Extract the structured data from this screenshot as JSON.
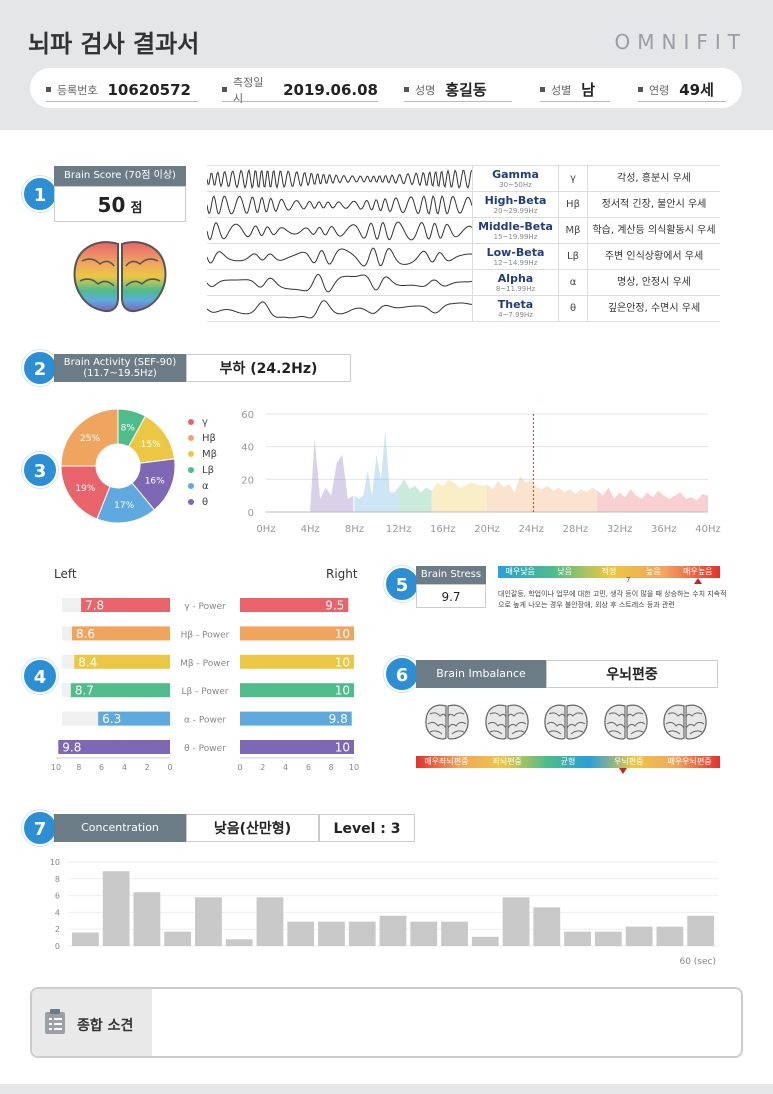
{
  "header": {
    "title": "뇌파 검사 결과서",
    "brand": "OMNIFIT",
    "fields": [
      {
        "label": "등록번호",
        "value": "10620572"
      },
      {
        "label": "측정일시",
        "value": "2019.06.08"
      },
      {
        "label": "성명",
        "value": "홍길동"
      },
      {
        "label": "성별",
        "value": "남"
      },
      {
        "label": "연령",
        "value": "49세"
      }
    ]
  },
  "section_numbers": [
    "1",
    "2",
    "3",
    "4",
    "5",
    "6",
    "7"
  ],
  "brain_score": {
    "label": "Brain Score (70점 이상)",
    "value": "50",
    "unit": "점"
  },
  "waves": [
    {
      "name": "Gamma",
      "range": "30~50Hz",
      "symbol": "γ",
      "desc": "각성, 흥분시 우세"
    },
    {
      "name": "High-Beta",
      "range": "20~29.99Hz",
      "symbol": "Hβ",
      "desc": "정서적 긴장, 불안시 우세"
    },
    {
      "name": "Middle-Beta",
      "range": "15~19.99Hz",
      "symbol": "Mβ",
      "desc": "학습, 계산등 의식활동시 우세"
    },
    {
      "name": "Low-Beta",
      "range": "12~14.99Hz",
      "symbol": "Lβ",
      "desc": "주변 인식상황에서 우세"
    },
    {
      "name": "Alpha",
      "range": "8~11.99Hz",
      "symbol": "α",
      "desc": "명상, 안정시 우세"
    },
    {
      "name": "Theta",
      "range": "4~7.99Hz",
      "symbol": "θ",
      "desc": "깊은안정, 수면시 우세"
    }
  ],
  "brain_activity": {
    "label_line1": "Brain Activity (SEF-90)",
    "label_line2": "(11.7~19.5Hz)",
    "value": "부하 (24.2Hz)"
  },
  "colors": {
    "gamma": "#e9636b",
    "hbeta": "#f0a55f",
    "mbeta": "#ecc743",
    "lbeta": "#4ebd8a",
    "alpha": "#5ea9df",
    "theta": "#7e67b5",
    "accent": "#2c8fd6",
    "tag": "#6b7c87"
  },
  "chart_data": [
    {
      "type": "pie",
      "title": "",
      "categories": [
        "γ",
        "Hβ",
        "Mβ",
        "Lβ",
        "α",
        "θ"
      ],
      "values": [
        19,
        25,
        15,
        8,
        17,
        16
      ],
      "labels": [
        "19%",
        "25%",
        "15%",
        "8%",
        "17%",
        "16%"
      ]
    },
    {
      "type": "area",
      "title": "",
      "xlabel": "",
      "ylabel": "",
      "xlim": [
        0,
        40
      ],
      "ylim": [
        0,
        60
      ],
      "x_ticks": [
        "0Hz",
        "4Hz",
        "8Hz",
        "12Hz",
        "16Hz",
        "20Hz",
        "24Hz",
        "28Hz",
        "32Hz",
        "36Hz",
        "40Hz"
      ],
      "y_ticks": [
        "0",
        "20",
        "40",
        "60"
      ],
      "marker_x": 24.2,
      "bands": [
        {
          "name": "θ",
          "from": 4,
          "to": 8,
          "points": [
            [
              4,
              2
            ],
            [
              4.4,
              45
            ],
            [
              4.9,
              8
            ],
            [
              5.4,
              15
            ],
            [
              5.9,
              10
            ],
            [
              6.4,
              30
            ],
            [
              6.9,
              35
            ],
            [
              7.4,
              8
            ],
            [
              7.9,
              10
            ]
          ]
        },
        {
          "name": "α",
          "from": 8,
          "to": 12,
          "points": [
            [
              8,
              10
            ],
            [
              8.4,
              8
            ],
            [
              8.8,
              10
            ],
            [
              9.2,
              25
            ],
            [
              9.6,
              10
            ],
            [
              10,
              35
            ],
            [
              10.4,
              20
            ],
            [
              10.8,
              50
            ],
            [
              11.2,
              12
            ],
            [
              11.6,
              12
            ],
            [
              12,
              15
            ]
          ]
        },
        {
          "name": "Lβ",
          "from": 12,
          "to": 15,
          "points": [
            [
              12,
              15
            ],
            [
              12.5,
              20
            ],
            [
              13,
              14
            ],
            [
              13.5,
              16
            ],
            [
              14,
              12
            ],
            [
              14.5,
              15
            ],
            [
              15,
              13
            ]
          ]
        },
        {
          "name": "Mβ",
          "from": 15,
          "to": 20,
          "points": [
            [
              15,
              13
            ],
            [
              15.5,
              18
            ],
            [
              16,
              16
            ],
            [
              16.5,
              20
            ],
            [
              17,
              18
            ],
            [
              17.5,
              15
            ],
            [
              18,
              16
            ],
            [
              18.5,
              18
            ],
            [
              19,
              17
            ],
            [
              19.5,
              16
            ],
            [
              20,
              17
            ]
          ]
        },
        {
          "name": "Hβ",
          "from": 20,
          "to": 30,
          "points": [
            [
              20,
              17
            ],
            [
              20.5,
              14
            ],
            [
              21,
              19
            ],
            [
              21.5,
              15
            ],
            [
              22,
              17
            ],
            [
              22.5,
              12
            ],
            [
              23,
              22
            ],
            [
              23.5,
              18
            ],
            [
              24,
              20
            ],
            [
              24.5,
              15
            ],
            [
              25,
              14
            ],
            [
              25.5,
              16
            ],
            [
              26,
              13
            ],
            [
              26.5,
              15
            ],
            [
              27,
              12
            ],
            [
              27.5,
              14
            ],
            [
              28,
              11
            ],
            [
              28.5,
              14
            ],
            [
              29,
              12
            ],
            [
              29.5,
              15
            ],
            [
              30,
              13
            ]
          ]
        },
        {
          "name": "γ",
          "from": 30,
          "to": 40,
          "points": [
            [
              30,
              13
            ],
            [
              30.5,
              10
            ],
            [
              31,
              15
            ],
            [
              31.5,
              8
            ],
            [
              32,
              12
            ],
            [
              32.5,
              9
            ],
            [
              33,
              14
            ],
            [
              33.5,
              10
            ],
            [
              34,
              8
            ],
            [
              34.5,
              12
            ],
            [
              35,
              9
            ],
            [
              35.5,
              13
            ],
            [
              36,
              10
            ],
            [
              36.5,
              8
            ],
            [
              37,
              10
            ],
            [
              37.5,
              12
            ],
            [
              38,
              8
            ],
            [
              38.5,
              9
            ],
            [
              39,
              7
            ],
            [
              39.5,
              11
            ],
            [
              40,
              10
            ]
          ]
        }
      ]
    },
    {
      "type": "bar",
      "title": "",
      "side_labels": {
        "left": "Left",
        "right": "Right"
      },
      "categories": [
        "γ - Power",
        "Hβ - Power",
        "Mβ - Power",
        "Lβ - Power",
        "α - Power",
        "θ - Power"
      ],
      "series": [
        {
          "name": "Left",
          "values": [
            7.8,
            8.6,
            8.4,
            8.7,
            6.3,
            9.8
          ],
          "labels": [
            "7.8",
            "8.6",
            "8.4",
            "8.7",
            "6.3",
            "9.8"
          ]
        },
        {
          "name": "Right",
          "values": [
            9.5,
            10,
            10,
            10,
            9.8,
            10
          ],
          "labels": [
            "9.5",
            "10",
            "10",
            "10",
            "9.8",
            "10"
          ]
        }
      ],
      "xlim": [
        0,
        10
      ],
      "left_ticks": [
        "10",
        "8",
        "6",
        "4",
        "2",
        "0"
      ],
      "right_ticks": [
        "0",
        "2",
        "4",
        "6",
        "8",
        "10"
      ]
    },
    {
      "type": "bar",
      "title": "",
      "x_end_label": "60 (sec)",
      "ylim": [
        0,
        10
      ],
      "y_ticks": [
        "0",
        "2",
        "4",
        "6",
        "8",
        "10"
      ],
      "values": [
        1.6,
        8.9,
        6.4,
        1.7,
        5.8,
        0.8,
        5.8,
        2.9,
        2.9,
        2.9,
        3.6,
        2.9,
        2.9,
        1.1,
        5.8,
        4.6,
        1.7,
        1.7,
        2.3,
        2.3,
        3.6
      ]
    }
  ],
  "brain_stress": {
    "label": "Brain Stress",
    "value": "9.7",
    "scale": [
      "매우낮음",
      "낮음",
      "적정",
      "높음",
      "매우높음"
    ],
    "scale_mark": "7",
    "marker_ratio": 0.9,
    "desc": "대인갈등, 학업이나 업무에 대한 고민, 생각 등이 많을 때 상승하는 수치 지속적으로 높게 나오는 경우 불안장애, 외상 후 스트레스 등과 관련"
  },
  "brain_imbalance": {
    "label": "Brain Imbalance",
    "value": "우뇌편중",
    "scale": [
      "매우좌뇌편중",
      "좌뇌편중",
      "균형",
      "우뇌편중",
      "매우우뇌편중"
    ],
    "marker_ratio": 0.68
  },
  "concentration": {
    "label": "Concentration",
    "value": "낮음(산만형)",
    "level": "Level : 3"
  },
  "summary": {
    "title": "종합 소견",
    "text": ""
  }
}
